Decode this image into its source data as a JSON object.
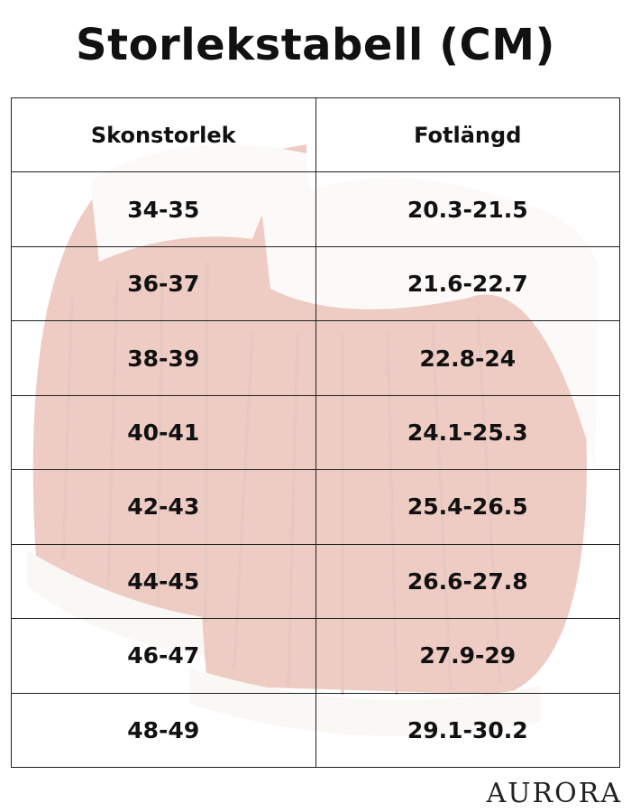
{
  "header": {
    "title": "Storlekstabell (CM)"
  },
  "table": {
    "columns": [
      "Skonstorlek",
      "Fotlängd"
    ],
    "rows": [
      [
        "34-35",
        "20.3-21.5"
      ],
      [
        "36-37",
        "21.6-22.7"
      ],
      [
        "38-39",
        "22.8-24"
      ],
      [
        "40-41",
        "24.1-25.3"
      ],
      [
        "42-43",
        "25.4-26.5"
      ],
      [
        "44-45",
        "26.6-27.8"
      ],
      [
        "46-47",
        "27.9-29"
      ],
      [
        "48-49",
        "29.1-30.2"
      ]
    ]
  },
  "footer": {
    "brand": "AURORA"
  }
}
